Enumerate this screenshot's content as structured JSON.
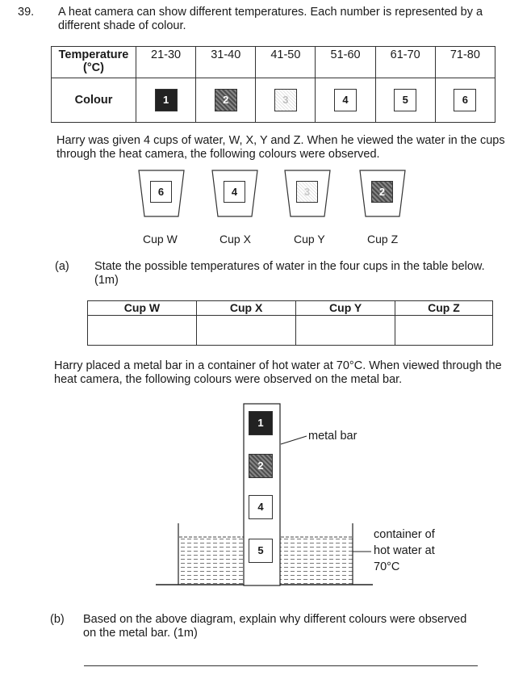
{
  "question": {
    "number": "39.",
    "text": "A heat camera can show different temperatures. Each number is represented by a different shade of colour."
  },
  "temp_table": {
    "row1_header": "Temperature (°C)",
    "row2_header": "Colour",
    "ranges": [
      "21-30",
      "31-40",
      "41-50",
      "51-60",
      "61-70",
      "71-80"
    ],
    "colours": [
      "1",
      "2",
      "3",
      "4",
      "5",
      "6"
    ]
  },
  "intro": "Harry was given 4 cups of water, W, X, Y and Z. When he viewed the water in the cups through the heat camera, the following colours were observed.",
  "cups": [
    {
      "label": "Cup W",
      "colour": "6"
    },
    {
      "label": "Cup X",
      "colour": "4"
    },
    {
      "label": "Cup Y",
      "colour": "3"
    },
    {
      "label": "Cup Z",
      "colour": "2"
    }
  ],
  "part_a": {
    "letter": "(a)",
    "text": "State the possible temperatures of water in the four cups in the table below. (1m)"
  },
  "cup_table": {
    "headers": [
      "Cup W",
      "Cup X",
      "Cup Y",
      "Cup Z"
    ]
  },
  "metal_intro": "Harry placed a metal bar in a container of hot water at 70°C. When viewed through the heat camera, the following colours were observed on the metal bar.",
  "diagram": {
    "bar_colours": [
      "1",
      "2",
      "4",
      "5"
    ],
    "metal_bar_label": "metal bar",
    "container_label": [
      "container of",
      "hot water at",
      "70°C"
    ]
  },
  "part_b": {
    "letter": "(b)",
    "text": "Based on the above diagram, explain why different colours were observed on the metal bar. (1m)"
  }
}
